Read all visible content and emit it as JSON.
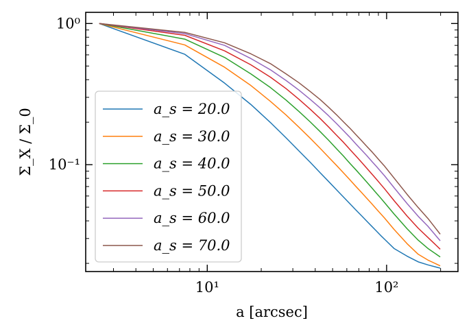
{
  "chart_data": {
    "type": "line",
    "xlabel": "a [arcsec]",
    "ylabel": "Σ_X / Σ_0",
    "x_scale": "log",
    "y_scale": "log",
    "xlim": [
      2.1,
      250
    ],
    "ylim": [
      0.0175,
      1.2
    ],
    "grid": false,
    "legend_position": "lower-left",
    "x_ticks": [
      {
        "value": 10,
        "label": "10¹"
      },
      {
        "value": 100,
        "label": "10²"
      }
    ],
    "y_ticks": [
      {
        "value": 0.1,
        "label": "10⁻¹"
      },
      {
        "value": 1,
        "label": "10⁰"
      }
    ],
    "x": [
      2.5,
      7.5,
      12.5,
      17.5,
      22.5,
      27.5,
      32.5,
      37.5,
      42.5,
      47.5,
      52.5,
      57.5,
      62.5,
      67.5,
      72.5,
      77.5,
      82.5,
      87.5,
      92.5,
      97.5,
      110,
      130,
      150,
      170,
      199
    ],
    "series": [
      {
        "name": "a_s = 20.0",
        "color": "#1f77b4",
        "values": [
          1.0,
          0.605,
          0.378,
          0.267,
          0.199,
          0.155,
          0.125,
          0.104,
          0.088,
          0.076,
          0.0665,
          0.059,
          0.0528,
          0.0477,
          0.0435,
          0.0398,
          0.0367,
          0.034,
          0.0316,
          0.0296,
          0.0255,
          0.0225,
          0.0205,
          0.0195,
          0.0185
        ]
      },
      {
        "name": "a_s = 30.0",
        "color": "#ff7f0e",
        "values": [
          1.0,
          0.705,
          0.49,
          0.364,
          0.281,
          0.225,
          0.184,
          0.154,
          0.131,
          0.113,
          0.099,
          0.0875,
          0.078,
          0.07,
          0.0635,
          0.0578,
          0.053,
          0.0487,
          0.045,
          0.0418,
          0.0348,
          0.0276,
          0.0232,
          0.0211,
          0.0192
        ]
      },
      {
        "name": "a_s = 40.0",
        "color": "#2ca02c",
        "values": [
          1.0,
          0.775,
          0.575,
          0.44,
          0.352,
          0.287,
          0.238,
          0.201,
          0.172,
          0.149,
          0.13,
          0.115,
          0.102,
          0.0918,
          0.0829,
          0.0753,
          0.0688,
          0.0631,
          0.0582,
          0.0538,
          0.0448,
          0.0352,
          0.0292,
          0.0255,
          0.0222
        ]
      },
      {
        "name": "a_s = 50.0",
        "color": "#d62728",
        "values": [
          1.0,
          0.825,
          0.64,
          0.51,
          0.417,
          0.346,
          0.29,
          0.247,
          0.213,
          0.185,
          0.162,
          0.144,
          0.128,
          0.115,
          0.104,
          0.0945,
          0.0863,
          0.0792,
          0.0729,
          0.0674,
          0.0557,
          0.0433,
          0.0355,
          0.0305,
          0.0252
        ]
      },
      {
        "name": "a_s = 60.0",
        "color": "#9467bd",
        "values": [
          1.0,
          0.848,
          0.7,
          0.565,
          0.47,
          0.395,
          0.337,
          0.29,
          0.253,
          0.222,
          0.196,
          0.174,
          0.156,
          0.14,
          0.127,
          0.116,
          0.106,
          0.0975,
          0.09,
          0.0833,
          0.0688,
          0.0531,
          0.0431,
          0.0366,
          0.0289
        ]
      },
      {
        "name": "a_s = 70.0",
        "color": "#8c564b",
        "values": [
          1.0,
          0.865,
          0.73,
          0.61,
          0.52,
          0.44,
          0.38,
          0.33,
          0.29,
          0.255,
          0.226,
          0.201,
          0.181,
          0.163,
          0.148,
          0.135,
          0.124,
          0.114,
          0.105,
          0.0975,
          0.0805,
          0.0617,
          0.0497,
          0.0416,
          0.0322
        ]
      }
    ]
  }
}
